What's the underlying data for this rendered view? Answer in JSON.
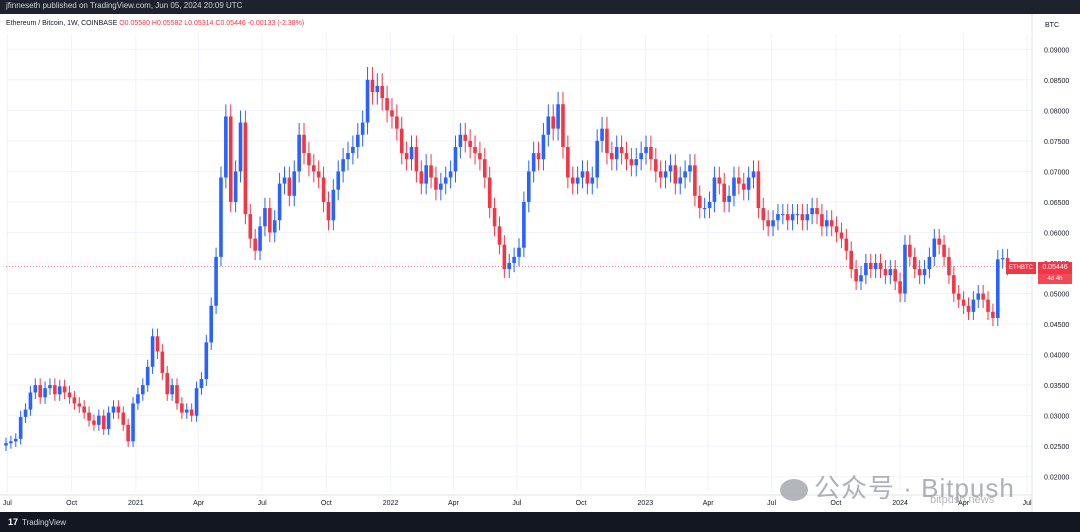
{
  "header": {
    "published": "jfinneseth published on TradingView.com, Jun 05, 2024 20:09 UTC"
  },
  "legend": {
    "symbol": "Ethereum / Bitcoin, 1W, COINBASE",
    "o": "O0.05580",
    "h": "H0.05582",
    "l": "L0.05314",
    "c": "C0.05446",
    "change": "-0.00133 (-2.38%)"
  },
  "currency": "BTC",
  "price_label": {
    "symbol": "ETHBTC",
    "price": "0.05446",
    "timer": "4d 4h"
  },
  "footer": {
    "logo_mark": "17",
    "logo_text": "TradingView"
  },
  "watermark": {
    "text": "公众号 · Bitpush",
    "small": "bitpush.news"
  },
  "colors": {
    "up": "#2962ff",
    "down": "#f23645",
    "grid": "#f0f3fa",
    "axis_text": "#131722"
  },
  "chart_data": {
    "type": "candlestick",
    "title": "Ethereum / Bitcoin, 1W, COINBASE",
    "ylim": [
      0.0175,
      0.0925
    ],
    "y_ticks": [
      "0.09000",
      "0.08500",
      "0.08000",
      "0.07500",
      "0.07000",
      "0.06500",
      "0.06000",
      "0.05500",
      "0.05000",
      "0.04500",
      "0.04000",
      "0.03500",
      "0.03000",
      "0.02500",
      "0.02000"
    ],
    "x_ticks": [
      {
        "label": "Jul",
        "date": "2020-07-01"
      },
      {
        "label": "Oct",
        "date": "2020-10-01"
      },
      {
        "label": "2021",
        "date": "2021-01-01"
      },
      {
        "label": "Apr",
        "date": "2021-04-01"
      },
      {
        "label": "Jul",
        "date": "2021-07-01"
      },
      {
        "label": "Oct",
        "date": "2021-10-01"
      },
      {
        "label": "2022",
        "date": "2022-01-01"
      },
      {
        "label": "Apr",
        "date": "2022-04-01"
      },
      {
        "label": "Jul",
        "date": "2022-07-01"
      },
      {
        "label": "Oct",
        "date": "2022-10-01"
      },
      {
        "label": "2023",
        "date": "2023-01-01"
      },
      {
        "label": "Apr",
        "date": "2023-04-01"
      },
      {
        "label": "Jul",
        "date": "2023-07-01"
      },
      {
        "label": "Oct",
        "date": "2023-10-01"
      },
      {
        "label": "2024",
        "date": "2024-01-01"
      },
      {
        "label": "Apr",
        "date": "2024-04-01"
      },
      {
        "label": "Jul",
        "date": "2024-07-01"
      }
    ],
    "x_range": [
      "2020-06-29",
      "2024-07-08"
    ],
    "current_price": 0.05446,
    "series": [
      {
        "date": "2020-06-29",
        "c": 0.0255
      },
      {
        "date": "2020-07-06",
        "c": 0.0258
      },
      {
        "date": "2020-07-13",
        "c": 0.0262
      },
      {
        "date": "2020-07-20",
        "c": 0.0298
      },
      {
        "date": "2020-07-27",
        "c": 0.031
      },
      {
        "date": "2020-08-03",
        "c": 0.0338
      },
      {
        "date": "2020-08-10",
        "c": 0.035
      },
      {
        "date": "2020-08-17",
        "c": 0.033
      },
      {
        "date": "2020-08-24",
        "c": 0.0345
      },
      {
        "date": "2020-08-31",
        "c": 0.035
      },
      {
        "date": "2020-09-07",
        "c": 0.0335
      },
      {
        "date": "2020-09-14",
        "c": 0.0348
      },
      {
        "date": "2020-09-21",
        "c": 0.0338
      },
      {
        "date": "2020-09-28",
        "c": 0.033
      },
      {
        "date": "2020-10-05",
        "c": 0.032
      },
      {
        "date": "2020-10-12",
        "c": 0.0315
      },
      {
        "date": "2020-10-19",
        "c": 0.0305
      },
      {
        "date": "2020-10-26",
        "c": 0.0292
      },
      {
        "date": "2020-11-02",
        "c": 0.0285
      },
      {
        "date": "2020-11-09",
        "c": 0.03
      },
      {
        "date": "2020-11-16",
        "c": 0.0278
      },
      {
        "date": "2020-11-23",
        "c": 0.0305
      },
      {
        "date": "2020-11-30",
        "c": 0.0315
      },
      {
        "date": "2020-12-07",
        "c": 0.0305
      },
      {
        "date": "2020-12-14",
        "c": 0.0285
      },
      {
        "date": "2020-12-21",
        "c": 0.0258
      },
      {
        "date": "2020-12-28",
        "c": 0.032
      },
      {
        "date": "2021-01-04",
        "c": 0.0335
      },
      {
        "date": "2021-01-11",
        "c": 0.035
      },
      {
        "date": "2021-01-18",
        "c": 0.038
      },
      {
        "date": "2021-01-25",
        "c": 0.043
      },
      {
        "date": "2021-02-01",
        "c": 0.0405
      },
      {
        "date": "2021-02-08",
        "c": 0.037
      },
      {
        "date": "2021-02-15",
        "c": 0.0335
      },
      {
        "date": "2021-02-22",
        "c": 0.035
      },
      {
        "date": "2021-03-01",
        "c": 0.032
      },
      {
        "date": "2021-03-08",
        "c": 0.0305
      },
      {
        "date": "2021-03-15",
        "c": 0.031
      },
      {
        "date": "2021-03-22",
        "c": 0.03
      },
      {
        "date": "2021-03-29",
        "c": 0.0345
      },
      {
        "date": "2021-04-05",
        "c": 0.036
      },
      {
        "date": "2021-04-12",
        "c": 0.042
      },
      {
        "date": "2021-04-19",
        "c": 0.048
      },
      {
        "date": "2021-04-26",
        "c": 0.056
      },
      {
        "date": "2021-05-03",
        "c": 0.069
      },
      {
        "date": "2021-05-10",
        "c": 0.079
      },
      {
        "date": "2021-05-17",
        "c": 0.065
      },
      {
        "date": "2021-05-24",
        "c": 0.07
      },
      {
        "date": "2021-05-31",
        "c": 0.078
      },
      {
        "date": "2021-06-07",
        "c": 0.063
      },
      {
        "date": "2021-06-14",
        "c": 0.059
      },
      {
        "date": "2021-06-21",
        "c": 0.057
      },
      {
        "date": "2021-06-28",
        "c": 0.061
      },
      {
        "date": "2021-07-05",
        "c": 0.064
      },
      {
        "date": "2021-07-12",
        "c": 0.06
      },
      {
        "date": "2021-07-19",
        "c": 0.062
      },
      {
        "date": "2021-07-26",
        "c": 0.068
      },
      {
        "date": "2021-08-02",
        "c": 0.069
      },
      {
        "date": "2021-08-09",
        "c": 0.066
      },
      {
        "date": "2021-08-16",
        "c": 0.07
      },
      {
        "date": "2021-08-23",
        "c": 0.076
      },
      {
        "date": "2021-08-30",
        "c": 0.073
      },
      {
        "date": "2021-09-06",
        "c": 0.071
      },
      {
        "date": "2021-09-13",
        "c": 0.07
      },
      {
        "date": "2021-09-20",
        "c": 0.069
      },
      {
        "date": "2021-09-27",
        "c": 0.065
      },
      {
        "date": "2021-10-04",
        "c": 0.062
      },
      {
        "date": "2021-10-11",
        "c": 0.067
      },
      {
        "date": "2021-10-18",
        "c": 0.07
      },
      {
        "date": "2021-10-25",
        "c": 0.072
      },
      {
        "date": "2021-11-01",
        "c": 0.073
      },
      {
        "date": "2021-11-08",
        "c": 0.074
      },
      {
        "date": "2021-11-15",
        "c": 0.076
      },
      {
        "date": "2021-11-22",
        "c": 0.078
      },
      {
        "date": "2021-11-29",
        "c": 0.085
      },
      {
        "date": "2021-12-06",
        "c": 0.083
      },
      {
        "date": "2021-12-13",
        "c": 0.084
      },
      {
        "date": "2021-12-20",
        "c": 0.082
      },
      {
        "date": "2021-12-27",
        "c": 0.08
      },
      {
        "date": "2022-01-03",
        "c": 0.079
      },
      {
        "date": "2022-01-10",
        "c": 0.077
      },
      {
        "date": "2022-01-17",
        "c": 0.073
      },
      {
        "date": "2022-01-24",
        "c": 0.072
      },
      {
        "date": "2022-01-31",
        "c": 0.074
      },
      {
        "date": "2022-02-07",
        "c": 0.07
      },
      {
        "date": "2022-02-14",
        "c": 0.068
      },
      {
        "date": "2022-02-21",
        "c": 0.071
      },
      {
        "date": "2022-02-28",
        "c": 0.069
      },
      {
        "date": "2022-03-07",
        "c": 0.067
      },
      {
        "date": "2022-03-14",
        "c": 0.068
      },
      {
        "date": "2022-03-21",
        "c": 0.069
      },
      {
        "date": "2022-03-28",
        "c": 0.07
      },
      {
        "date": "2022-04-04",
        "c": 0.074
      },
      {
        "date": "2022-04-11",
        "c": 0.076
      },
      {
        "date": "2022-04-18",
        "c": 0.075
      },
      {
        "date": "2022-04-25",
        "c": 0.074
      },
      {
        "date": "2022-05-02",
        "c": 0.073
      },
      {
        "date": "2022-05-09",
        "c": 0.072
      },
      {
        "date": "2022-05-16",
        "c": 0.069
      },
      {
        "date": "2022-05-23",
        "c": 0.064
      },
      {
        "date": "2022-05-30",
        "c": 0.061
      },
      {
        "date": "2022-06-06",
        "c": 0.058
      },
      {
        "date": "2022-06-13",
        "c": 0.054
      },
      {
        "date": "2022-06-20",
        "c": 0.055
      },
      {
        "date": "2022-06-27",
        "c": 0.056
      },
      {
        "date": "2022-07-04",
        "c": 0.0575
      },
      {
        "date": "2022-07-11",
        "c": 0.065
      },
      {
        "date": "2022-07-18",
        "c": 0.07
      },
      {
        "date": "2022-07-25",
        "c": 0.073
      },
      {
        "date": "2022-08-01",
        "c": 0.072
      },
      {
        "date": "2022-08-08",
        "c": 0.076
      },
      {
        "date": "2022-08-15",
        "c": 0.079
      },
      {
        "date": "2022-08-22",
        "c": 0.077
      },
      {
        "date": "2022-08-29",
        "c": 0.081
      },
      {
        "date": "2022-09-05",
        "c": 0.074
      },
      {
        "date": "2022-09-12",
        "c": 0.069
      },
      {
        "date": "2022-09-19",
        "c": 0.068
      },
      {
        "date": "2022-09-26",
        "c": 0.069
      },
      {
        "date": "2022-10-03",
        "c": 0.07
      },
      {
        "date": "2022-10-10",
        "c": 0.068
      },
      {
        "date": "2022-10-17",
        "c": 0.069
      },
      {
        "date": "2022-10-24",
        "c": 0.075
      },
      {
        "date": "2022-10-31",
        "c": 0.077
      },
      {
        "date": "2022-11-07",
        "c": 0.073
      },
      {
        "date": "2022-11-14",
        "c": 0.072
      },
      {
        "date": "2022-11-21",
        "c": 0.074
      },
      {
        "date": "2022-11-28",
        "c": 0.073
      },
      {
        "date": "2022-12-05",
        "c": 0.072
      },
      {
        "date": "2022-12-12",
        "c": 0.071
      },
      {
        "date": "2022-12-19",
        "c": 0.072
      },
      {
        "date": "2022-12-26",
        "c": 0.073
      },
      {
        "date": "2023-01-02",
        "c": 0.074
      },
      {
        "date": "2023-01-09",
        "c": 0.072
      },
      {
        "date": "2023-01-16",
        "c": 0.07
      },
      {
        "date": "2023-01-23",
        "c": 0.069
      },
      {
        "date": "2023-01-30",
        "c": 0.07
      },
      {
        "date": "2023-02-06",
        "c": 0.071
      },
      {
        "date": "2023-02-13",
        "c": 0.068
      },
      {
        "date": "2023-02-20",
        "c": 0.069
      },
      {
        "date": "2023-02-27",
        "c": 0.07
      },
      {
        "date": "2023-03-06",
        "c": 0.071
      },
      {
        "date": "2023-03-13",
        "c": 0.066
      },
      {
        "date": "2023-03-20",
        "c": 0.064
      },
      {
        "date": "2023-03-27",
        "c": 0.064
      },
      {
        "date": "2023-04-03",
        "c": 0.065
      },
      {
        "date": "2023-04-10",
        "c": 0.069
      },
      {
        "date": "2023-04-17",
        "c": 0.068
      },
      {
        "date": "2023-04-24",
        "c": 0.065
      },
      {
        "date": "2023-05-01",
        "c": 0.066
      },
      {
        "date": "2023-05-08",
        "c": 0.069
      },
      {
        "date": "2023-05-15",
        "c": 0.068
      },
      {
        "date": "2023-05-22",
        "c": 0.067
      },
      {
        "date": "2023-05-29",
        "c": 0.069
      },
      {
        "date": "2023-06-05",
        "c": 0.07
      },
      {
        "date": "2023-06-12",
        "c": 0.064
      },
      {
        "date": "2023-06-19",
        "c": 0.062
      },
      {
        "date": "2023-06-26",
        "c": 0.061
      },
      {
        "date": "2023-07-03",
        "c": 0.062
      },
      {
        "date": "2023-07-10",
        "c": 0.063
      },
      {
        "date": "2023-07-17",
        "c": 0.063
      },
      {
        "date": "2023-07-24",
        "c": 0.062
      },
      {
        "date": "2023-07-31",
        "c": 0.063
      },
      {
        "date": "2023-08-07",
        "c": 0.063
      },
      {
        "date": "2023-08-14",
        "c": 0.062
      },
      {
        "date": "2023-08-21",
        "c": 0.063
      },
      {
        "date": "2023-08-28",
        "c": 0.064
      },
      {
        "date": "2023-09-04",
        "c": 0.063
      },
      {
        "date": "2023-09-11",
        "c": 0.061
      },
      {
        "date": "2023-09-18",
        "c": 0.062
      },
      {
        "date": "2023-09-25",
        "c": 0.061
      },
      {
        "date": "2023-10-02",
        "c": 0.06
      },
      {
        "date": "2023-10-09",
        "c": 0.059
      },
      {
        "date": "2023-10-16",
        "c": 0.057
      },
      {
        "date": "2023-10-23",
        "c": 0.054
      },
      {
        "date": "2023-10-30",
        "c": 0.052
      },
      {
        "date": "2023-11-06",
        "c": 0.053
      },
      {
        "date": "2023-11-13",
        "c": 0.055
      },
      {
        "date": "2023-11-20",
        "c": 0.054
      },
      {
        "date": "2023-11-27",
        "c": 0.055
      },
      {
        "date": "2023-12-04",
        "c": 0.054
      },
      {
        "date": "2023-12-11",
        "c": 0.053
      },
      {
        "date": "2023-12-18",
        "c": 0.054
      },
      {
        "date": "2023-12-25",
        "c": 0.052
      },
      {
        "date": "2024-01-01",
        "c": 0.05
      },
      {
        "date": "2024-01-08",
        "c": 0.058
      },
      {
        "date": "2024-01-15",
        "c": 0.056
      },
      {
        "date": "2024-01-22",
        "c": 0.054
      },
      {
        "date": "2024-01-29",
        "c": 0.053
      },
      {
        "date": "2024-02-05",
        "c": 0.054
      },
      {
        "date": "2024-02-12",
        "c": 0.056
      },
      {
        "date": "2024-02-19",
        "c": 0.059
      },
      {
        "date": "2024-02-26",
        "c": 0.058
      },
      {
        "date": "2024-03-04",
        "c": 0.056
      },
      {
        "date": "2024-03-11",
        "c": 0.053
      },
      {
        "date": "2024-03-18",
        "c": 0.05
      },
      {
        "date": "2024-03-25",
        "c": 0.049
      },
      {
        "date": "2024-04-01",
        "c": 0.048
      },
      {
        "date": "2024-04-08",
        "c": 0.047
      },
      {
        "date": "2024-04-15",
        "c": 0.049
      },
      {
        "date": "2024-04-22",
        "c": 0.05
      },
      {
        "date": "2024-04-29",
        "c": 0.049
      },
      {
        "date": "2024-05-06",
        "c": 0.047
      },
      {
        "date": "2024-05-13",
        "c": 0.046
      },
      {
        "date": "2024-05-20",
        "c": 0.0556
      },
      {
        "date": "2024-05-27",
        "c": 0.0558
      },
      {
        "date": "2024-06-03",
        "c": 0.05446
      }
    ]
  }
}
